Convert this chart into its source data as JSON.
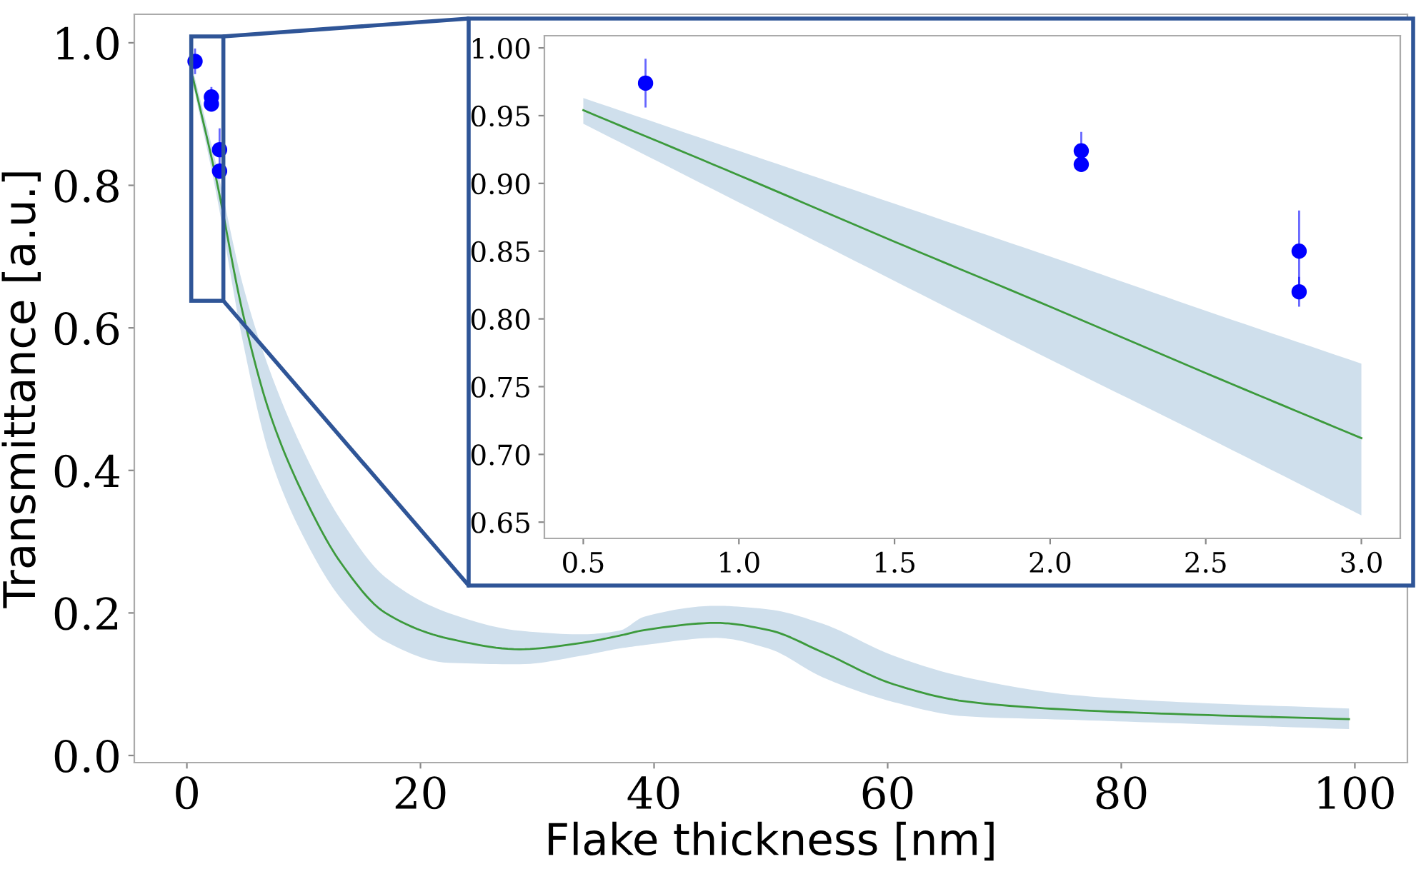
{
  "chart_data": [
    {
      "type": "scatter",
      "xlabel": "Flake thickness [nm]",
      "ylabel": "Transmittance [a.u.]",
      "xlim": [
        -4.5,
        104.5
      ],
      "ylim": [
        -0.01,
        1.04
      ],
      "xticks": [
        0,
        20,
        40,
        60,
        80,
        100
      ],
      "yticks": [
        {
          "value": 0,
          "label": "0.0"
        },
        0.2,
        0.4,
        0.6,
        0.8,
        {
          "value": 1,
          "label": "1.0"
        }
      ],
      "grid": false,
      "series": [
        {
          "type": "line",
          "color": "#3c9a3c",
          "x": [
            0.5,
            2.5,
            4.8,
            7.1,
            10.2,
            13.2,
            17,
            22.4,
            28.5,
            33.8,
            37,
            39.2,
            45.3,
            49.8,
            54.4,
            60.5,
            66.6,
            75.8,
            85,
            99.5
          ],
          "values": [
            0.952,
            0.81,
            0.62,
            0.48,
            0.358,
            0.27,
            0.2,
            0.164,
            0.149,
            0.158,
            0.168,
            0.176,
            0.186,
            0.176,
            0.145,
            0.1,
            0.076,
            0.064,
            0.058,
            0.051
          ],
          "lower": [
            0.944,
            0.79,
            0.58,
            0.42,
            0.3,
            0.22,
            0.16,
            0.13,
            0.128,
            0.14,
            0.15,
            0.155,
            0.165,
            0.15,
            0.11,
            0.075,
            0.055,
            0.05,
            0.045,
            0.037
          ],
          "upper": [
            0.963,
            0.83,
            0.66,
            0.54,
            0.42,
            0.33,
            0.25,
            0.2,
            0.175,
            0.17,
            0.175,
            0.195,
            0.21,
            0.205,
            0.185,
            0.14,
            0.11,
            0.085,
            0.075,
            0.066
          ]
        },
        {
          "marker": "circle",
          "color": "#0000ff",
          "x": [
            0.7,
            2.1,
            2.1,
            2.8,
            2.8
          ],
          "values": [
            0.974,
            0.924,
            0.914,
            0.85,
            0.82
          ],
          "errors": [
            0.018,
            0.014,
            null,
            0.03,
            0.011
          ]
        }
      ]
    },
    {
      "type": "scatter",
      "xlim": [
        0.375,
        3.125
      ],
      "ylim": [
        0.638,
        1.009
      ],
      "xticks": [
        0.5,
        {
          "value": 1,
          "label": "1.0"
        },
        1.5,
        {
          "value": 2,
          "label": "2.0"
        },
        2.5,
        {
          "value": 3,
          "label": "3.0"
        }
      ],
      "yticks": [
        0.65,
        {
          "value": 0.7,
          "label": "0.70"
        },
        0.75,
        {
          "value": 0.8,
          "label": "0.80"
        },
        0.85,
        {
          "value": 0.9,
          "label": "0.90"
        },
        0.95,
        {
          "value": 1.0,
          "label": "1.00"
        }
      ],
      "grid": false,
      "series": [
        {
          "type": "line",
          "color": "#3c9a3c",
          "x": [
            0.5,
            1.0,
            1.5,
            2.0,
            2.5,
            3.0
          ],
          "values": [
            0.954,
            0.906,
            0.857,
            0.809,
            0.76,
            0.712
          ],
          "lower": [
            0.944,
            0.886,
            0.828,
            0.77,
            0.713,
            0.655
          ],
          "upper": [
            0.963,
            0.924,
            0.885,
            0.846,
            0.806,
            0.767
          ]
        },
        {
          "marker": "circle",
          "color": "#0000ff",
          "x": [
            0.7,
            2.1,
            2.1,
            2.8,
            2.8
          ],
          "values": [
            0.974,
            0.924,
            0.914,
            0.85,
            0.82
          ],
          "errors": [
            0.018,
            0.014,
            null,
            0.03,
            0.011
          ]
        }
      ]
    }
  ]
}
